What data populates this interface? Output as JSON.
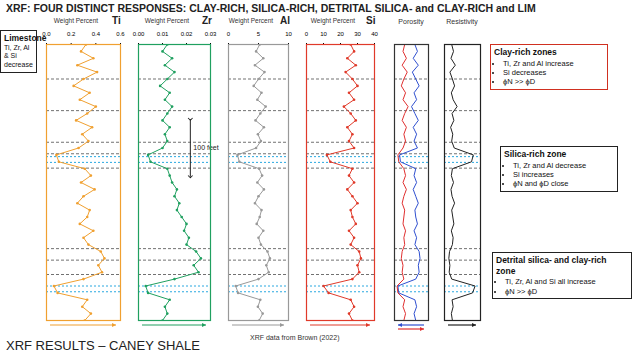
{
  "title": "XRF: FOUR DISTINCT RESPONSES: CLAY-RICH, SILICA-RICH, DETRITAL SILICA- and CLAY-RICH and LIM",
  "footer": "XRF RESULTS – CANEY SHALE",
  "source": "XRF data from Brown (2022)",
  "annotations": [
    {
      "title": "Limestone",
      "items": [
        "Ti, Zr, Al & Si decrease"
      ]
    },
    {
      "title": "Clay-rich zones",
      "items": [
        "Ti, Zr and Al increase",
        "Si decreases",
        "ϕN >> ϕD"
      ]
    },
    {
      "title": "Silica-rich zone",
      "items": [
        "Ti, Zr and Al decrease",
        "Si increases",
        "ϕN and ϕD close"
      ]
    },
    {
      "title": "Detrital silica- and clay-rich zone",
      "items": [
        "Ti, Zr, Al and Si all increase",
        "ϕN >> ϕD"
      ]
    }
  ],
  "depth": [
    0,
    12,
    24,
    36,
    48,
    60,
    72,
    84,
    96,
    108,
    120,
    132,
    144,
    156,
    168,
    180,
    192,
    204,
    216,
    228,
    240,
    252,
    264,
    276,
    288,
    300,
    312,
    324,
    336,
    348,
    360,
    372,
    384,
    396,
    408,
    420,
    432,
    444,
    456,
    468,
    480
  ],
  "zone_boundaries": [
    60,
    115,
    170,
    190,
    215,
    355,
    375,
    400
  ],
  "limestone_boundaries": [
    195,
    205,
    420,
    430
  ],
  "chart_data": [
    {
      "type": "line",
      "title": "Ti",
      "subtitle": "Weight Percent",
      "color": "#f0a030",
      "marker": "dot",
      "ylim": [
        0,
        480
      ],
      "xlim": [
        0,
        0.6
      ],
      "tick_labels": "x",
      "xticks": [
        {
          "value": 0,
          "label": "0.0"
        },
        {
          "value": 0.2,
          "label": "0.2"
        },
        {
          "value": 0.4,
          "label": "0.4"
        },
        {
          "value": 0.6,
          "label": "0.6"
        }
      ],
      "values": [
        0.32,
        0.28,
        0.38,
        0.25,
        0.41,
        0.3,
        0.22,
        0.35,
        0.27,
        0.4,
        0.33,
        0.24,
        0.37,
        0.29,
        0.34,
        0.26,
        0.08,
        0.1,
        0.31,
        0.36,
        0.28,
        0.39,
        0.3,
        0.25,
        0.35,
        0.33,
        0.27,
        0.38,
        0.3,
        0.34,
        0.44,
        0.47,
        0.42,
        0.45,
        0.3,
        0.06,
        0.09,
        0.33,
        0.29,
        0.36,
        0.31
      ]
    },
    {
      "type": "line",
      "title": "Zr",
      "subtitle": "Weight Percent",
      "color": "#20a060",
      "marker": "dot",
      "ylim": [
        0,
        480
      ],
      "xlim": [
        0,
        0.03
      ],
      "tick_labels": "x",
      "xticks": [
        {
          "value": 0,
          "label": "0.00"
        },
        {
          "value": 0.01,
          "label": "0.01"
        },
        {
          "value": 0.02,
          "label": "0.02"
        },
        {
          "value": 0.03,
          "label": "0.03"
        }
      ],
      "values": [
        0.012,
        0.01,
        0.014,
        0.011,
        0.015,
        0.012,
        0.009,
        0.013,
        0.011,
        0.014,
        0.012,
        0.01,
        0.013,
        0.011,
        0.012,
        0.01,
        0.004,
        0.005,
        0.012,
        0.013,
        0.014,
        0.016,
        0.015,
        0.017,
        0.016,
        0.018,
        0.02,
        0.019,
        0.021,
        0.02,
        0.024,
        0.026,
        0.023,
        0.025,
        0.015,
        0.003,
        0.004,
        0.013,
        0.011,
        0.012,
        0.01
      ],
      "scale_bar": {
        "label": "100 feet",
        "length": 100
      }
    },
    {
      "type": "line",
      "title": "Al",
      "subtitle": "Weight Percent",
      "color": "#999999",
      "marker": "dot",
      "ylim": [
        0,
        480
      ],
      "xlim": [
        0,
        10
      ],
      "tick_labels": "x",
      "xticks": [
        0,
        5,
        10
      ],
      "values": [
        5.2,
        4.6,
        5.8,
        4.4,
        6.0,
        5.0,
        4.2,
        5.5,
        4.8,
        6.2,
        5.3,
        4.5,
        5.9,
        4.9,
        5.4,
        4.6,
        1.5,
        1.8,
        5.1,
        5.6,
        4.8,
        5.9,
        5.0,
        4.4,
        5.5,
        5.2,
        4.7,
        5.8,
        5.0,
        5.4,
        6.5,
        6.9,
        6.3,
        6.7,
        5.0,
        1.2,
        1.6,
        5.3,
        4.9,
        5.7,
        5.1
      ]
    },
    {
      "type": "line",
      "title": "Si",
      "subtitle": "Weight Percent",
      "color": "#e03a2a",
      "marker": "dot",
      "ylim": [
        0,
        480
      ],
      "xlim": [
        0,
        40
      ],
      "tick_labels": "x",
      "xticks": [
        0,
        10,
        20,
        30,
        40
      ],
      "values": [
        26,
        28,
        24,
        29,
        23,
        27,
        30,
        25,
        28,
        22,
        26,
        29,
        24,
        27,
        25,
        28,
        12,
        14,
        27,
        25,
        28,
        24,
        27,
        30,
        26,
        27,
        29,
        25,
        28,
        26,
        31,
        32,
        30,
        31,
        27,
        10,
        13,
        26,
        28,
        25,
        27
      ]
    },
    {
      "type": "line",
      "title": "Porosity",
      "ylim": [
        0,
        480
      ],
      "xlim": [
        0,
        40
      ],
      "tick_labels": false,
      "series": [
        {
          "color": "#3050d0",
          "values": [
            24,
            27,
            22,
            28,
            21,
            25,
            29,
            23,
            26,
            20,
            24,
            28,
            22,
            26,
            23,
            27,
            6,
            7,
            25,
            23,
            26,
            22,
            25,
            28,
            24,
            25,
            27,
            23,
            26,
            24,
            29,
            30,
            28,
            29,
            25,
            4,
            5,
            24,
            26,
            23,
            25
          ]
        },
        {
          "color": "#e03030",
          "values": [
            12,
            10,
            14,
            9,
            15,
            11,
            8,
            13,
            10,
            16,
            12,
            9,
            14,
            11,
            13,
            10,
            4,
            5,
            11,
            13,
            10,
            14,
            11,
            9,
            12,
            11,
            10,
            13,
            11,
            12,
            9,
            8,
            10,
            9,
            11,
            3,
            4,
            12,
            10,
            13,
            11
          ]
        }
      ]
    },
    {
      "type": "line",
      "title": "Resistivity",
      "color": "#222222",
      "ylim": [
        0,
        480
      ],
      "xlim": [
        0,
        100
      ],
      "tick_labels": false,
      "values": [
        20,
        25,
        18,
        30,
        15,
        22,
        28,
        19,
        24,
        35,
        21,
        26,
        17,
        23,
        20,
        27,
        80,
        75,
        22,
        19,
        25,
        18,
        21,
        28,
        20,
        23,
        26,
        19,
        24,
        22,
        14,
        12,
        15,
        13,
        20,
        85,
        78,
        21,
        24,
        19,
        22
      ]
    }
  ]
}
